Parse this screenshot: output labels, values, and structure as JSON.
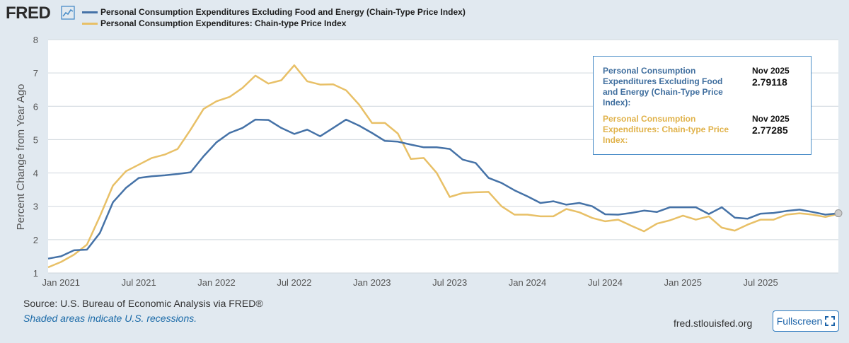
{
  "header": {
    "logo_text": "FRED",
    "logo_icon": "trend-chart-icon"
  },
  "colors": {
    "core_series": "#4572a7",
    "headline_series": "#e8c067",
    "tooltip_border": "#4a8dc8",
    "tooltip_core_text": "#3f6e9e",
    "tooltip_headline_text": "#e0b24a",
    "link": "#1a6aa8"
  },
  "chart_data": {
    "type": "line",
    "title": "",
    "xlabel": "",
    "ylabel": "Percent Change from Year Ago",
    "ylim": [
      1,
      8
    ],
    "yticks": [
      "1",
      "2",
      "3",
      "4",
      "5",
      "6",
      "7",
      "8"
    ],
    "xlim": [
      "2020-12",
      "2025-12"
    ],
    "xticks": [
      {
        "label": "Jan 2021",
        "month": 1
      },
      {
        "label": "Jul 2021",
        "month": 7
      },
      {
        "label": "Jan 2022",
        "month": 13
      },
      {
        "label": "Jul 2022",
        "month": 19
      },
      {
        "label": "Jan 2023",
        "month": 25
      },
      {
        "label": "Jul 2023",
        "month": 31
      },
      {
        "label": "Jan 2024",
        "month": 37
      },
      {
        "label": "Jul 2024",
        "month": 43
      },
      {
        "label": "Jan 2025",
        "month": 49
      },
      {
        "label": "Jul 2025",
        "month": 55
      }
    ],
    "grid": true,
    "start_month": "Dec 2020",
    "series": [
      {
        "name": "Personal Consumption Expenditures Excluding Food and Energy (Chain-Type Price Index)",
        "color_key": "core_series",
        "values": [
          1.43,
          1.5,
          1.68,
          1.7,
          2.2,
          3.12,
          3.55,
          3.85,
          3.9,
          3.93,
          3.97,
          4.02,
          4.5,
          4.92,
          5.2,
          5.35,
          5.6,
          5.59,
          5.35,
          5.17,
          5.3,
          5.1,
          5.35,
          5.6,
          5.42,
          5.2,
          4.96,
          4.94,
          4.85,
          4.77,
          4.77,
          4.72,
          4.4,
          4.3,
          3.85,
          3.7,
          3.48,
          3.3,
          3.1,
          3.15,
          3.05,
          3.1,
          3.0,
          2.76,
          2.75,
          2.8,
          2.87,
          2.83,
          2.97,
          2.97,
          2.97,
          2.77,
          2.97,
          2.66,
          2.63,
          2.78,
          2.8,
          2.86,
          2.9,
          2.83,
          2.75,
          2.79118
        ]
      },
      {
        "name": "Personal Consumption Expenditures: Chain-type Price Index",
        "color_key": "headline_series",
        "values": [
          1.17,
          1.33,
          1.55,
          1.85,
          2.7,
          3.62,
          4.05,
          4.25,
          4.45,
          4.55,
          4.72,
          5.3,
          5.92,
          6.15,
          6.28,
          6.55,
          6.92,
          6.68,
          6.78,
          7.23,
          6.75,
          6.65,
          6.66,
          6.48,
          6.05,
          5.5,
          5.5,
          5.18,
          4.42,
          4.45,
          4.0,
          3.28,
          3.4,
          3.42,
          3.43,
          3.0,
          2.75,
          2.75,
          2.7,
          2.7,
          2.92,
          2.82,
          2.65,
          2.55,
          2.6,
          2.42,
          2.25,
          2.48,
          2.58,
          2.72,
          2.6,
          2.7,
          2.36,
          2.27,
          2.45,
          2.6,
          2.6,
          2.75,
          2.79,
          2.75,
          2.68,
          2.77285
        ]
      }
    ]
  },
  "tooltip": {
    "core_name": "Personal Consumption Expenditures Excluding Food and Energy (Chain-Type Price Index):",
    "core_date": "Nov 2025",
    "core_value": "2.79118",
    "headline_name": "Personal Consumption Expenditures: Chain-type Price Index:",
    "headline_date": "Nov 2025",
    "headline_value": "2.77285"
  },
  "footer": {
    "source": "Source: U.S. Bureau of Economic Analysis via FRED®",
    "recession_note": "Shaded areas indicate U.S. recessions.",
    "site": "fred.stlouisfed.org",
    "fullscreen_label": "Fullscreen",
    "fullscreen_icon": "expand-icon"
  }
}
